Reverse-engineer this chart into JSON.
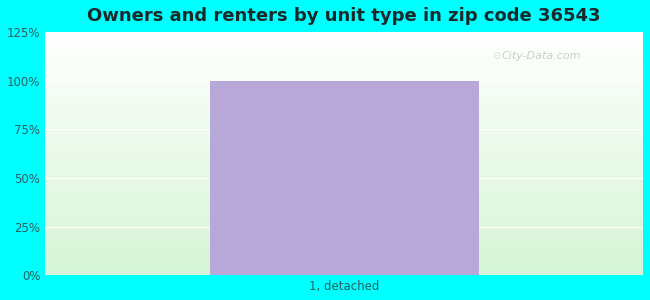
{
  "title": "Owners and renters by unit type in zip code 36543",
  "categories": [
    "1, detached"
  ],
  "values": [
    100
  ],
  "bar_color": "#b8a8d8",
  "bar_alpha": 1.0,
  "ylim": [
    0,
    125
  ],
  "yticks": [
    0,
    25,
    50,
    75,
    100,
    125
  ],
  "ytick_labels": [
    "0%",
    "25%",
    "50%",
    "75%",
    "100%",
    "125%"
  ],
  "title_fontsize": 13,
  "tick_fontsize": 8.5,
  "xlabel_fontsize": 8.5,
  "bg_color": "#00ffff",
  "plot_top_color": "#ffffff",
  "plot_bottom_color": "#d8f5d8",
  "watermark_text": "City-Data.com",
  "watermark_color": "#c0c8c0",
  "bar_width": 0.45,
  "tick_color": "#2a6060",
  "title_color": "#1a2a2a"
}
